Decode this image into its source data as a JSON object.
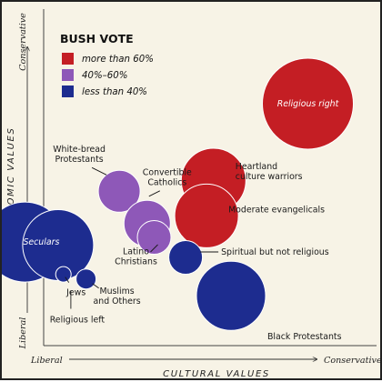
{
  "chart_data": {
    "type": "scatter",
    "xlabel": "CULTURAL VALUES",
    "ylabel": "ECONOMIC VALUES",
    "x_ends": {
      "low": "Liberal",
      "high": "Conservative"
    },
    "y_ends": {
      "low": "Liberal",
      "high": "Conservative"
    },
    "legend": {
      "title": "BUSH VOTE",
      "items": [
        {
          "label": "more than 60%",
          "color": "#c41e24"
        },
        {
          "label": "40%–60%",
          "color": "#8e58b8"
        },
        {
          "label": "less than 40%",
          "color": "#1d2c8f"
        }
      ]
    },
    "grid": false,
    "groups": [
      {
        "label": "Religious right",
        "x": 0.845,
        "y": 0.845,
        "size": 1.0,
        "vote": "more than 60%"
      },
      {
        "label": "Heartland\nculture warriors",
        "x": 0.575,
        "y": 0.595,
        "size": 0.71,
        "vote": "more than 60%"
      },
      {
        "label": "Moderate evangelicals",
        "x": 0.555,
        "y": 0.48,
        "size": 0.7,
        "vote": "more than 60%"
      },
      {
        "label": "White-bread\nProtestants",
        "x": 0.305,
        "y": 0.56,
        "size": 0.46,
        "vote": "40%–60%"
      },
      {
        "label": "Convertible\nCatholics",
        "x": 0.385,
        "y": 0.455,
        "size": 0.51,
        "vote": "40%–60%"
      },
      {
        "label": "Latino\nChristians",
        "x": 0.405,
        "y": 0.41,
        "size": 0.37,
        "vote": "40%–60%"
      },
      {
        "label": "Seculars",
        "x": 0.035,
        "y": 0.395,
        "size": 0.88,
        "vote": "less than 40%"
      },
      {
        "label": "Religious left",
        "x": 0.13,
        "y": 0.385,
        "size": 0.78,
        "vote": "less than 40%"
      },
      {
        "label": "Jews",
        "x": 0.145,
        "y": 0.29,
        "size": 0.17,
        "vote": "less than 40%"
      },
      {
        "label": "Muslims\nand Others",
        "x": 0.21,
        "y": 0.275,
        "size": 0.22,
        "vote": "less than 40%"
      },
      {
        "label": "Spiritual but not religious",
        "x": 0.495,
        "y": 0.345,
        "size": 0.37,
        "vote": "less than 40%"
      },
      {
        "label": "Black Protestants",
        "x": 0.625,
        "y": 0.22,
        "size": 0.76,
        "vote": "less than 40%"
      }
    ]
  }
}
